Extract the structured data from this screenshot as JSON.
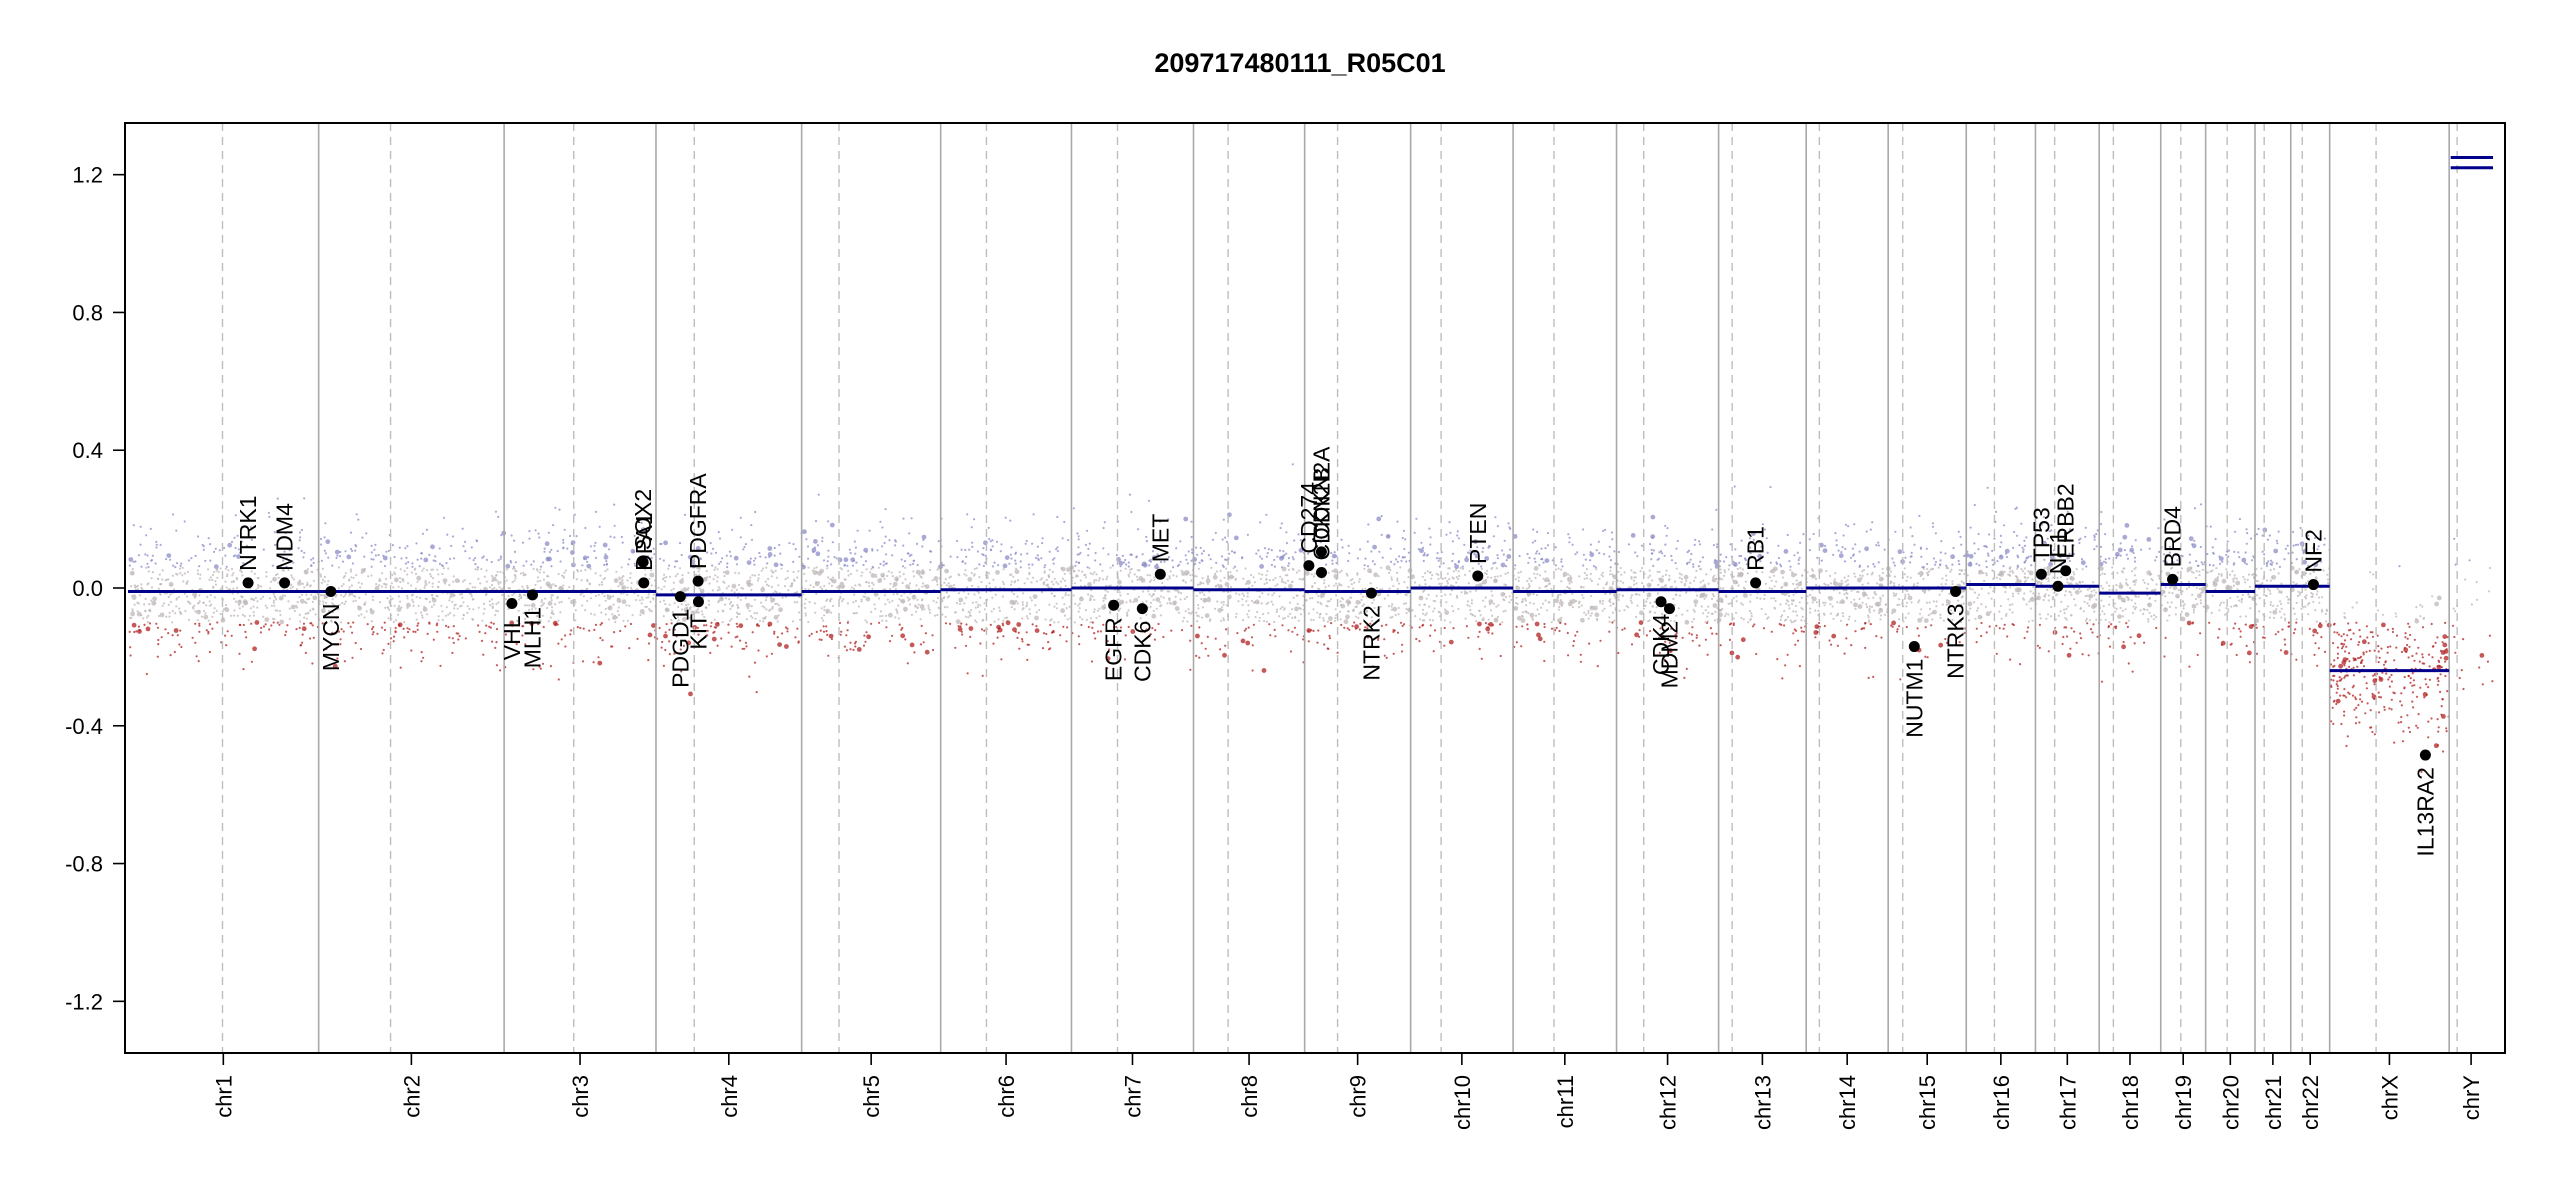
{
  "chart_data": {
    "type": "scatter",
    "title": "209717480111_R05C01",
    "xlabel": "",
    "ylabel": "",
    "ylim": [
      -1.35,
      1.35
    ],
    "yticks": [
      -1.2,
      -0.8,
      -0.4,
      0.0,
      0.4,
      0.8,
      1.2
    ],
    "ytick_labels": [
      "-1.2",
      "-0.8",
      "-0.4",
      "0.0",
      "0.4",
      "0.8",
      "1.2"
    ],
    "grid": false,
    "colors": {
      "segment": "#00008b",
      "gain_probe": "#8c8cc8",
      "loss_probe": "#b22222",
      "neutral_probe": "#bfb7b7",
      "chrom_boundary": "#a9a9a9",
      "centromere": "#bdbdbd",
      "gene_marker": "#000000"
    },
    "chromosomes": [
      {
        "name": "chr1",
        "start": 0,
        "length": 248.96,
        "centromere": 123.4
      },
      {
        "name": "chr2",
        "start": 248.96,
        "length": 242.19,
        "centromere": 93.9
      },
      {
        "name": "chr3",
        "start": 491.15,
        "length": 198.3,
        "centromere": 90.9
      },
      {
        "name": "chr4",
        "start": 689.45,
        "length": 190.21,
        "centromere": 50.0
      },
      {
        "name": "chr5",
        "start": 879.66,
        "length": 181.54,
        "centromere": 48.8
      },
      {
        "name": "chr6",
        "start": 1061.2,
        "length": 170.81,
        "centromere": 59.8
      },
      {
        "name": "chr7",
        "start": 1232.01,
        "length": 159.35,
        "centromere": 60.1
      },
      {
        "name": "chr8",
        "start": 1391.36,
        "length": 145.14,
        "centromere": 45.2
      },
      {
        "name": "chr9",
        "start": 1536.5,
        "length": 138.39,
        "centromere": 43.0
      },
      {
        "name": "chr10",
        "start": 1674.89,
        "length": 133.8,
        "centromere": 39.8
      },
      {
        "name": "chr11",
        "start": 1808.69,
        "length": 135.09,
        "centromere": 53.4
      },
      {
        "name": "chr12",
        "start": 1943.78,
        "length": 133.28,
        "centromere": 35.5
      },
      {
        "name": "chr13",
        "start": 2077.06,
        "length": 114.36,
        "centromere": 17.7
      },
      {
        "name": "chr14",
        "start": 2191.42,
        "length": 107.04,
        "centromere": 17.2
      },
      {
        "name": "chr15",
        "start": 2298.46,
        "length": 101.99,
        "centromere": 19.0
      },
      {
        "name": "chr16",
        "start": 2400.45,
        "length": 90.34,
        "centromere": 36.8
      },
      {
        "name": "chr17",
        "start": 2490.79,
        "length": 83.26,
        "centromere": 25.1
      },
      {
        "name": "chr18",
        "start": 2574.05,
        "length": 80.37,
        "centromere": 18.5
      },
      {
        "name": "chr19",
        "start": 2654.42,
        "length": 58.62,
        "centromere": 26.2
      },
      {
        "name": "chr20",
        "start": 2713.04,
        "length": 64.44,
        "centromere": 28.1
      },
      {
        "name": "chr21",
        "start": 2777.48,
        "length": 46.71,
        "centromere": 12.0
      },
      {
        "name": "chr22",
        "start": 2824.19,
        "length": 50.82,
        "centromere": 15.0
      },
      {
        "name": "chrX",
        "start": 2875.01,
        "length": 156.04,
        "centromere": 60.6
      },
      {
        "name": "chrY",
        "start": 3031.05,
        "length": 57.23,
        "centromere": 10.4
      }
    ],
    "total_length": 3088.28,
    "segments": [
      {
        "chrom": "chr1",
        "start": 0,
        "end": 248.96,
        "value": -0.01
      },
      {
        "chrom": "chr2",
        "start": 0,
        "end": 242.19,
        "value": -0.01
      },
      {
        "chrom": "chr3",
        "start": 0,
        "end": 198.3,
        "value": -0.01
      },
      {
        "chrom": "chr4",
        "start": 0,
        "end": 190.21,
        "value": -0.02
      },
      {
        "chrom": "chr5",
        "start": 0,
        "end": 181.54,
        "value": -0.01
      },
      {
        "chrom": "chr6",
        "start": 0,
        "end": 170.81,
        "value": -0.005
      },
      {
        "chrom": "chr7",
        "start": 0,
        "end": 159.35,
        "value": 0.0
      },
      {
        "chrom": "chr8",
        "start": 0,
        "end": 145.14,
        "value": -0.005
      },
      {
        "chrom": "chr9",
        "start": 0,
        "end": 138.39,
        "value": -0.01
      },
      {
        "chrom": "chr10",
        "start": 0,
        "end": 133.8,
        "value": 0.0
      },
      {
        "chrom": "chr11",
        "start": 0,
        "end": 135.09,
        "value": -0.01
      },
      {
        "chrom": "chr12",
        "start": 0,
        "end": 133.28,
        "value": -0.005
      },
      {
        "chrom": "chr13",
        "start": 0,
        "end": 114.36,
        "value": -0.01
      },
      {
        "chrom": "chr14",
        "start": 0,
        "end": 107.04,
        "value": 0.0
      },
      {
        "chrom": "chr15",
        "start": 0,
        "end": 101.99,
        "value": 0.0
      },
      {
        "chrom": "chr16",
        "start": 0,
        "end": 90.34,
        "value": 0.01
      },
      {
        "chrom": "chr17",
        "start": 0,
        "end": 83.26,
        "value": 0.005
      },
      {
        "chrom": "chr18",
        "start": 0,
        "end": 80.37,
        "value": -0.015
      },
      {
        "chrom": "chr19",
        "start": 0,
        "end": 58.62,
        "value": 0.01
      },
      {
        "chrom": "chr20",
        "start": 0,
        "end": 64.44,
        "value": -0.01
      },
      {
        "chrom": "chr21",
        "start": 0,
        "end": 46.71,
        "value": 0.005
      },
      {
        "chrom": "chr22",
        "start": 0,
        "end": 50.82,
        "value": 0.005
      },
      {
        "chrom": "chrX",
        "start": 0,
        "end": 156.04,
        "value": -0.24
      },
      {
        "chrom": "chrY",
        "start": 2,
        "end": 57.23,
        "value": 1.22
      },
      {
        "chrom": "chrY",
        "start": 2,
        "end": 57.23,
        "value": 1.25
      }
    ],
    "genes": [
      {
        "name": "NTRK1",
        "x": 156.8,
        "y": 0.015,
        "side": "above"
      },
      {
        "name": "MDM4",
        "x": 204.5,
        "y": 0.015,
        "side": "above"
      },
      {
        "name": "MYCN",
        "x": 264.9,
        "y": -0.01,
        "side": "below"
      },
      {
        "name": "PDGD1",
        "x": 721.2,
        "y": -0.025,
        "side": "below"
      },
      {
        "name": "VHL",
        "x": 501.3,
        "y": -0.045,
        "side": "below"
      },
      {
        "name": "MLH1",
        "x": 528.2,
        "y": -0.02,
        "side": "below"
      },
      {
        "name": "SOX2",
        "x": 672.6,
        "y": 0.075,
        "side": "above"
      },
      {
        "name": "DPA1",
        "x": 673.5,
        "y": 0.015,
        "side": "above"
      },
      {
        "name": "PDGFRA",
        "x": 744.5,
        "y": 0.02,
        "side": "above"
      },
      {
        "name": "KIT",
        "x": 744.9,
        "y": -0.04,
        "side": "below"
      },
      {
        "name": "EGFR",
        "x": 1287.1,
        "y": -0.05,
        "side": "below"
      },
      {
        "name": "CDK6",
        "x": 1324.5,
        "y": -0.06,
        "side": "below"
      },
      {
        "name": "MET",
        "x": 1348.0,
        "y": 0.04,
        "side": "above"
      },
      {
        "name": "CD274",
        "x": 1542.0,
        "y": 0.065,
        "side": "above"
      },
      {
        "name": "CDKN2A",
        "x": 1558.4,
        "y": 0.105,
        "side": "above"
      },
      {
        "name": "CDKN2B",
        "x": 1558.5,
        "y": 0.045,
        "side": "above"
      },
      {
        "name": "NTRK2",
        "x": 1623.7,
        "y": -0.015,
        "side": "below"
      },
      {
        "name": "PTEN",
        "x": 1762.6,
        "y": 0.035,
        "side": "above"
      },
      {
        "name": "CDK4",
        "x": 2001.9,
        "y": -0.04,
        "side": "below"
      },
      {
        "name": "MDM2",
        "x": 2012.9,
        "y": -0.06,
        "side": "below"
      },
      {
        "name": "RB1",
        "x": 2125.4,
        "y": 0.015,
        "side": "above"
      },
      {
        "name": "NUTM1",
        "x": 2332.6,
        "y": -0.17,
        "side": "below"
      },
      {
        "name": "NTRK3",
        "x": 2386.5,
        "y": -0.01,
        "side": "below"
      },
      {
        "name": "TP53",
        "x": 2498.5,
        "y": 0.04,
        "side": "above"
      },
      {
        "name": "NF1",
        "x": 2520.2,
        "y": 0.005,
        "side": "above"
      },
      {
        "name": "ERBB2",
        "x": 2530.3,
        "y": 0.05,
        "side": "above"
      },
      {
        "name": "BRD4",
        "x": 2669.8,
        "y": 0.025,
        "side": "above"
      },
      {
        "name": "NF2",
        "x": 2853.8,
        "y": 0.01,
        "side": "above"
      },
      {
        "name": "IL13RA2",
        "x": 3000.0,
        "y": -0.485,
        "side": "below"
      }
    ]
  }
}
